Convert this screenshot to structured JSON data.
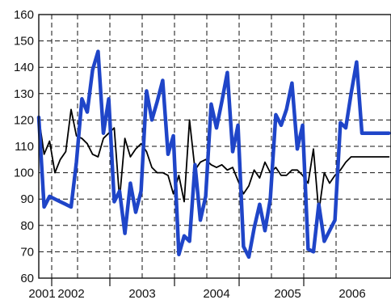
{
  "chart_data": {
    "type": "line",
    "title": "",
    "xlabel": "",
    "ylabel": "",
    "ylim": [
      60,
      160
    ],
    "y_ticks": [
      60,
      70,
      80,
      90,
      100,
      110,
      120,
      130,
      140,
      150,
      160
    ],
    "y_tick_labels": [
      "60",
      "70",
      "80",
      "90",
      "100",
      "110",
      "120",
      "130",
      "140",
      "150",
      "160"
    ],
    "x_period_labels": [
      "2001",
      "2002",
      "2003",
      "2004",
      "2005",
      "2006"
    ],
    "x_period_label_dates": [
      2001.0,
      2001.5,
      2002.6,
      2003.75,
      2004.85,
      2005.85
    ],
    "x_dividers": [
      2001.2,
      2002.1,
      2003.1,
      2004.1,
      2005.1
    ],
    "x_gridlines": [
      2001.2,
      2001.6,
      2002.1,
      2002.6,
      2003.1,
      2003.6,
      2004.1,
      2004.6,
      2005.1,
      2005.6
    ],
    "x_range": [
      2001.0,
      2006.45
    ],
    "grid": true,
    "legend": "none",
    "series": [
      {
        "color": "#000000",
        "line_width": 1.8,
        "x": [
          2001.0,
          2001.083,
          2001.167,
          2001.25,
          2001.333,
          2001.417,
          2001.5,
          2001.583,
          2001.667,
          2001.75,
          2001.833,
          2001.917,
          2002.0,
          2002.083,
          2002.167,
          2002.25,
          2002.333,
          2002.417,
          2002.5,
          2002.583,
          2002.667,
          2002.75,
          2002.833,
          2002.917,
          2003.0,
          2003.083,
          2003.167,
          2003.25,
          2003.333,
          2003.417,
          2003.5,
          2003.583,
          2003.667,
          2003.75,
          2003.833,
          2003.917,
          2004.0,
          2004.083,
          2004.167,
          2004.25,
          2004.333,
          2004.417,
          2004.5,
          2004.583,
          2004.667,
          2004.75,
          2004.833,
          2004.917,
          2005.0,
          2005.083,
          2005.167,
          2005.25,
          2005.333,
          2005.417,
          2005.5,
          2005.583,
          2005.667,
          2005.75,
          2005.833,
          2005.917,
          2006.0,
          2006.083,
          2006.167,
          2006.25,
          2006.333,
          2006.417
        ],
        "values": [
          121,
          107,
          112,
          100,
          105,
          108,
          124,
          114,
          113,
          111,
          107,
          106,
          113,
          115,
          117,
          90,
          113,
          106,
          109,
          111,
          108,
          102,
          100,
          100,
          99,
          92,
          99,
          89,
          120,
          101,
          104,
          105,
          103,
          102,
          103,
          101,
          102,
          97,
          92,
          95,
          101,
          98,
          104,
          100,
          102,
          99,
          99,
          101,
          101,
          99,
          96,
          109,
          85,
          100,
          96,
          99,
          101,
          104,
          106,
          106,
          106,
          106,
          106,
          106,
          106,
          106
        ]
      },
      {
        "color": "#1f45c8",
        "line_width": 4.5,
        "x": [
          2001.0,
          2001.083,
          2001.167,
          2001.25,
          2001.333,
          2001.417,
          2001.5,
          2001.583,
          2001.667,
          2001.75,
          2001.833,
          2001.917,
          2002.0,
          2002.083,
          2002.167,
          2002.25,
          2002.333,
          2002.417,
          2002.5,
          2002.583,
          2002.667,
          2002.75,
          2002.833,
          2002.917,
          2003.0,
          2003.083,
          2003.167,
          2003.25,
          2003.333,
          2003.417,
          2003.5,
          2003.583,
          2003.667,
          2003.75,
          2003.833,
          2003.917,
          2004.0,
          2004.083,
          2004.167,
          2004.25,
          2004.333,
          2004.417,
          2004.5,
          2004.583,
          2004.667,
          2004.75,
          2004.833,
          2004.917,
          2005.0,
          2005.083,
          2005.167,
          2005.25,
          2005.333,
          2005.417,
          2005.5,
          2005.583,
          2005.667,
          2005.75,
          2005.833,
          2005.917,
          2006.0,
          2006.083,
          2006.167,
          2006.25,
          2006.333,
          2006.417
        ],
        "values": [
          121,
          87,
          91,
          90,
          89,
          88,
          87,
          104,
          128,
          123,
          139,
          146,
          115,
          128,
          89,
          93,
          77,
          96,
          85,
          93,
          131,
          120,
          127,
          135,
          107,
          114,
          69,
          76,
          74,
          103,
          82,
          91,
          126,
          117,
          127,
          138,
          108,
          118,
          72,
          68,
          79,
          88,
          78,
          90,
          122,
          118,
          124,
          134,
          109,
          118,
          71,
          70,
          88,
          74,
          78,
          82,
          119,
          117,
          130,
          142,
          115,
          115,
          115,
          115,
          115,
          115
        ]
      }
    ]
  }
}
